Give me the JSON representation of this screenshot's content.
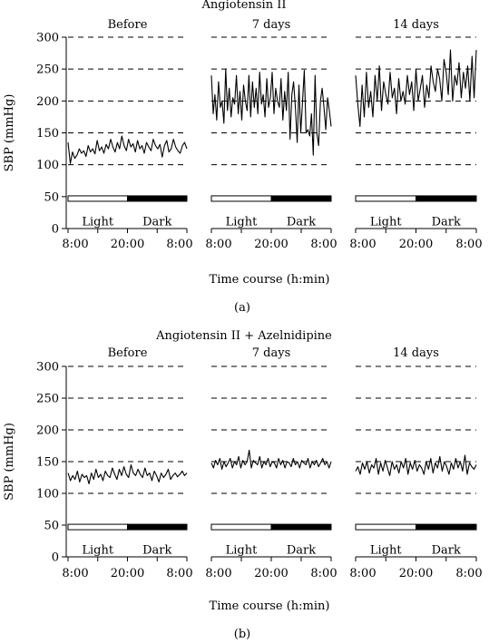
{
  "figure": {
    "y_axis_label": "SBP (mmHg)",
    "x_axis_label": "Time course (h:min)",
    "x_tick_labels": [
      "8:00",
      "20:00",
      "8:00"
    ],
    "y_ticks": [
      0,
      50,
      100,
      150,
      200,
      250,
      300
    ],
    "light_label": "Light",
    "dark_label": "Dark",
    "series_color": "#000000"
  },
  "chart_data": [
    {
      "type": "line",
      "panel_label": "(a)",
      "group_title": "Angiotensin II",
      "ylabel": "SBP (mmHg)",
      "xlabel": "Time course (h:min)",
      "ylim": [
        0,
        300
      ],
      "grid_lines": [
        100,
        150,
        200,
        250,
        300
      ],
      "light_dark_bar": {
        "level": 47,
        "light_end_fraction": 0.5
      },
      "subplots": [
        {
          "title": "Before",
          "x_range": [
            "8:00",
            "8:00 (+24 h)"
          ],
          "values": [
            135,
            102,
            120,
            110,
            115,
            125,
            118,
            122,
            113,
            130,
            120,
            125,
            117,
            138,
            122,
            128,
            118,
            132,
            125,
            140,
            128,
            120,
            135,
            125,
            145,
            130,
            122,
            140,
            128,
            133,
            120,
            138,
            125,
            130,
            118,
            135,
            128,
            122,
            140,
            130,
            125,
            132,
            112,
            130,
            138,
            120,
            125,
            140,
            128,
            122,
            118,
            130,
            135,
            125
          ]
        },
        {
          "title": "7 days",
          "x_range": [
            "8:00",
            "8:00 (+24 h)"
          ],
          "values": [
            240,
            180,
            210,
            170,
            230,
            190,
            200,
            165,
            250,
            185,
            220,
            175,
            205,
            195,
            240,
            180,
            215,
            170,
            225,
            200,
            185,
            240,
            175,
            230,
            190,
            220,
            180,
            245,
            195,
            210,
            175,
            235,
            190,
            205,
            245,
            180,
            220,
            200,
            190,
            235,
            170,
            215,
            185,
            245,
            140,
            210,
            230,
            190,
            135,
            225,
            150,
            200,
            248,
            150,
            155,
            145,
            180,
            115,
            240,
            150,
            130,
            200,
            220,
            190,
            155,
            205,
            185,
            160
          ]
        },
        {
          "title": "14 days",
          "x_range": [
            "8:00",
            "8:00 (+24 h)"
          ],
          "values": [
            240,
            195,
            160,
            225,
            175,
            245,
            190,
            215,
            175,
            240,
            200,
            255,
            185,
            230,
            210,
            195,
            245,
            205,
            220,
            180,
            235,
            200,
            215,
            195,
            240,
            210,
            230,
            185,
            250,
            200,
            220,
            240,
            190,
            225,
            205,
            255,
            230,
            215,
            250,
            235,
            200,
            265,
            245,
            210,
            280,
            200,
            240,
            225,
            260,
            205,
            245,
            220,
            255,
            200,
            270,
            205,
            280
          ]
        }
      ]
    },
    {
      "type": "line",
      "panel_label": "(b)",
      "group_title": "Angiotensin II + Azelnidipine",
      "ylabel": "SBP (mmHg)",
      "xlabel": "Time course (h:min)",
      "ylim": [
        0,
        300
      ],
      "grid_lines": [
        100,
        150,
        200,
        250,
        300
      ],
      "light_dark_bar": {
        "level": 47,
        "light_end_fraction": 0.5
      },
      "subplots": [
        {
          "title": "Before",
          "x_range": [
            "8:00",
            "8:00 (+24 h)"
          ],
          "values": [
            132,
            120,
            128,
            122,
            135,
            118,
            130,
            125,
            128,
            115,
            132,
            122,
            138,
            125,
            130,
            120,
            135,
            128,
            125,
            140,
            130,
            122,
            138,
            128,
            142,
            130,
            125,
            145,
            132,
            128,
            138,
            130,
            125,
            140,
            128,
            132,
            120,
            135,
            128,
            118,
            132,
            125,
            130,
            138,
            122,
            128,
            132,
            126,
            130,
            135,
            128,
            132
          ]
        },
        {
          "title": "7 days",
          "x_range": [
            "8:00",
            "8:00 (+24 h)"
          ],
          "values": [
            148,
            140,
            152,
            145,
            155,
            138,
            150,
            142,
            148,
            155,
            140,
            150,
            145,
            158,
            140,
            152,
            145,
            150,
            168,
            140,
            152,
            148,
            145,
            158,
            140,
            150,
            145,
            155,
            142,
            150,
            148,
            140,
            155,
            145,
            152,
            140,
            150,
            148,
            142,
            155,
            145,
            150,
            140,
            152,
            148,
            145,
            155,
            140,
            150,
            145,
            152,
            142,
            148,
            155,
            145,
            150,
            140,
            150
          ]
        },
        {
          "title": "14 days",
          "x_range": [
            "8:00",
            "8:00 (+24 h)"
          ],
          "values": [
            135,
            142,
            130,
            148,
            138,
            150,
            132,
            145,
            140,
            155,
            130,
            148,
            135,
            152,
            140,
            128,
            150,
            138,
            145,
            132,
            150,
            140,
            155,
            130,
            148,
            138,
            152,
            135,
            145,
            140,
            130,
            150,
            138,
            155,
            132,
            148,
            140,
            158,
            135,
            150,
            142,
            130,
            148,
            138,
            155,
            140,
            150,
            135,
            160,
            130,
            148,
            142,
            138,
            145
          ]
        }
      ]
    }
  ]
}
